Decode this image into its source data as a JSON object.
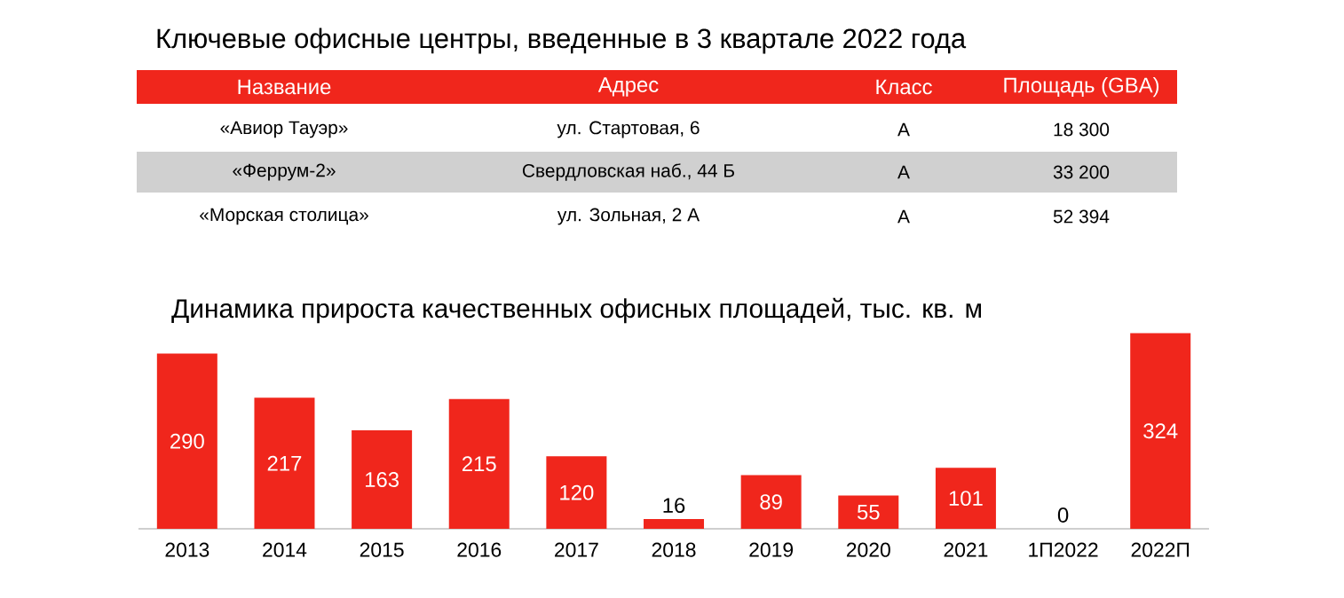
{
  "chart_data": [
    {
      "type": "other",
      "title": "Ключевые офисные центры, введенные в 3 квартале 2022 года",
      "annotations": [
        "Название",
        "Адрес",
        "Класс",
        "Площадь (GBA)",
        "«Авиор Тауэр»",
        "ул. Стартовая, 6",
        "А",
        "18 300",
        "«Феррум-2»",
        "Свердловская наб., 44 Б",
        "А",
        "33 200",
        "«Морская столица»",
        "ул. Зольная, 2 А",
        "А",
        "52 394"
      ]
    },
    {
      "type": "bar",
      "title": "Динамика прироста качественных офисных площадей, тыс. кв. м",
      "categories": [
        "2013",
        "2014",
        "2015",
        "2016",
        "2017",
        "2018",
        "2019",
        "2020",
        "2021",
        "1П2022",
        "2022П"
      ],
      "values": [
        290,
        217,
        163,
        215,
        120,
        16,
        89,
        55,
        101,
        0,
        324
      ],
      "color": "#f0261c",
      "data_labels": true,
      "tick_labels": "x"
    }
  ]
}
